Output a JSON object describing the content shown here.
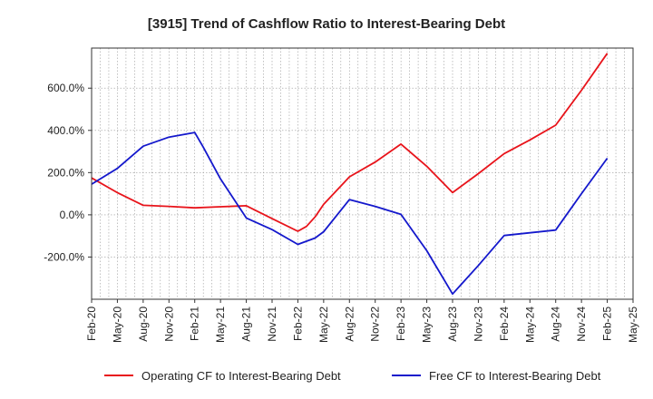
{
  "chart_data": {
    "type": "line",
    "title": "[3915]  Trend of Cashflow Ratio to Interest-Bearing Debt",
    "xlabel": "",
    "ylabel": "",
    "x_ticks": [
      "Feb-20",
      "May-20",
      "Aug-20",
      "Nov-20",
      "Feb-21",
      "May-21",
      "Aug-21",
      "Nov-21",
      "Feb-22",
      "May-22",
      "Aug-22",
      "Nov-22",
      "Feb-23",
      "May-23",
      "Aug-23",
      "Nov-23",
      "Feb-24",
      "May-24",
      "Aug-24",
      "Nov-24",
      "Feb-25",
      "May-25"
    ],
    "y_ticks": [
      {
        "value": 600,
        "label": "600.0%"
      },
      {
        "value": 400,
        "label": "400.0%"
      },
      {
        "value": 200,
        "label": "200.0%"
      },
      {
        "value": 0,
        "label": "0.0%"
      },
      {
        "value": -200,
        "label": "-200.0%"
      }
    ],
    "ylim": [
      -400,
      790
    ],
    "grid": true,
    "legend_position": "bottom",
    "series": [
      {
        "name": "Operating CF to Interest-Bearing Debt",
        "color": "#e8141b",
        "points": [
          [
            "Feb-20",
            175
          ],
          [
            "May-20",
            105
          ],
          [
            "Aug-20",
            45
          ],
          [
            "Nov-20",
            40
          ],
          [
            "Feb-21",
            33
          ],
          [
            "May-21",
            38
          ],
          [
            "Aug-21",
            43
          ],
          [
            "Nov-21",
            -18
          ],
          [
            "Feb-22",
            -78
          ],
          [
            "Mar-22",
            -55
          ],
          [
            "Apr-22",
            -10
          ],
          [
            "May-22",
            50
          ],
          [
            "Aug-22",
            180
          ],
          [
            "Nov-22",
            250
          ],
          [
            "Feb-23",
            335
          ],
          [
            "May-23",
            230
          ],
          [
            "Aug-23",
            105
          ],
          [
            "Nov-23",
            195
          ],
          [
            "Feb-24",
            290
          ],
          [
            "May-24",
            355
          ],
          [
            "Aug-24",
            425
          ],
          [
            "Nov-24",
            590
          ],
          [
            "Feb-25",
            765
          ]
        ]
      },
      {
        "name": "Free CF to Interest-Bearing Debt",
        "color": "#1418cc",
        "points": [
          [
            "Feb-20",
            145
          ],
          [
            "May-20",
            220
          ],
          [
            "Aug-20",
            325
          ],
          [
            "Nov-20",
            368
          ],
          [
            "Feb-21",
            390
          ],
          [
            "Mar-21",
            320
          ],
          [
            "May-21",
            170
          ],
          [
            "Aug-21",
            -15
          ],
          [
            "Nov-21",
            -70
          ],
          [
            "Feb-22",
            -140
          ],
          [
            "Apr-22",
            -110
          ],
          [
            "May-22",
            -80
          ],
          [
            "Aug-22",
            72
          ],
          [
            "Nov-22",
            40
          ],
          [
            "Feb-23",
            2
          ],
          [
            "May-23",
            -170
          ],
          [
            "Aug-23",
            -375
          ],
          [
            "Nov-23",
            -240
          ],
          [
            "Feb-24",
            -98
          ],
          [
            "May-24",
            -85
          ],
          [
            "Aug-24",
            -72
          ],
          [
            "Nov-24",
            100
          ],
          [
            "Feb-25",
            268
          ]
        ]
      }
    ]
  }
}
